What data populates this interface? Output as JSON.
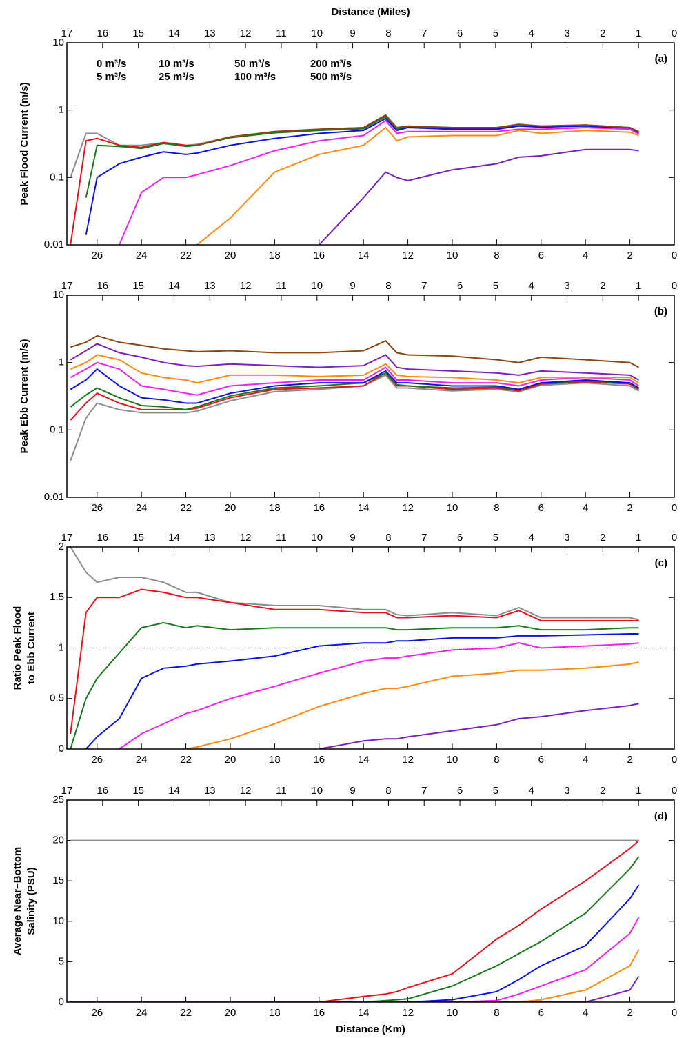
{
  "chart_data": [
    {
      "type": "line",
      "x2label": "Distance (Miles)",
      "panel": "(a)",
      "ylabel": [
        "Peak Flood Current (m/s)"
      ],
      "log": true,
      "xlim": [
        27.36,
        0
      ],
      "xticks": [
        26,
        24,
        22,
        20,
        18,
        16,
        14,
        12,
        10,
        8,
        6,
        4,
        2,
        0
      ],
      "x2lim": [
        17,
        0
      ],
      "x2ticks": [
        17,
        16,
        15,
        14,
        13,
        12,
        11,
        10,
        9,
        8,
        7,
        6,
        5,
        4,
        3,
        2,
        1,
        0
      ],
      "ylim": [
        0.01,
        10
      ],
      "yticks": [
        0.01,
        0.1,
        1,
        10
      ],
      "x": [
        27.2,
        26.5,
        26,
        25,
        24,
        23,
        22,
        21.5,
        20,
        18,
        16,
        14,
        13,
        12.5,
        12,
        10,
        8,
        7,
        6,
        4,
        2,
        1.6
      ],
      "series": [
        {
          "name": "0 m³/s",
          "color": "#8c8c8c",
          "values": [
            0.1,
            0.45,
            0.45,
            0.3,
            0.3,
            0.33,
            0.3,
            0.31,
            0.4,
            0.48,
            0.52,
            0.55,
            0.85,
            0.55,
            0.58,
            0.55,
            0.55,
            0.62,
            0.58,
            0.6,
            0.55,
            0.48
          ]
        },
        {
          "name": "5 m³/s",
          "color": "#e8101a",
          "values": [
            0.01,
            0.35,
            0.38,
            0.3,
            0.28,
            0.33,
            0.3,
            0.3,
            0.4,
            0.47,
            0.51,
            0.54,
            0.82,
            0.53,
            0.57,
            0.53,
            0.53,
            0.6,
            0.57,
            0.6,
            0.54,
            0.47
          ]
        },
        {
          "name": "10 m³/s",
          "color": "#1a7a1a",
          "values": [
            null,
            0.05,
            0.3,
            0.29,
            0.27,
            0.32,
            0.29,
            0.3,
            0.39,
            0.46,
            0.5,
            0.53,
            0.8,
            0.52,
            0.56,
            0.52,
            0.52,
            0.59,
            0.56,
            0.59,
            0.53,
            0.46
          ]
        },
        {
          "name": "25 m³/s",
          "color": "#0a14e0",
          "values": [
            null,
            0.014,
            0.1,
            0.16,
            0.2,
            0.24,
            0.22,
            0.23,
            0.3,
            0.38,
            0.45,
            0.5,
            0.75,
            0.5,
            0.55,
            0.52,
            0.52,
            0.58,
            0.56,
            0.58,
            0.53,
            0.46
          ]
        },
        {
          "name": "50 m³/s",
          "color": "#f020f0",
          "values": [
            null,
            null,
            null,
            0.01,
            0.06,
            0.1,
            0.1,
            0.11,
            0.15,
            0.25,
            0.35,
            0.42,
            0.7,
            0.45,
            0.48,
            0.48,
            0.48,
            0.52,
            0.52,
            0.55,
            0.52,
            0.44
          ]
        },
        {
          "name": "100 m³/s",
          "color": "#ff8a10",
          "values": [
            null,
            null,
            null,
            null,
            null,
            null,
            null,
            0.01,
            0.025,
            0.12,
            0.22,
            0.3,
            0.55,
            0.35,
            0.4,
            0.42,
            0.42,
            0.5,
            0.45,
            0.5,
            0.47,
            0.42
          ]
        },
        {
          "name": "200 m³/s",
          "color": "#7a1fc0",
          "values": [
            null,
            null,
            null,
            null,
            null,
            null,
            null,
            null,
            null,
            null,
            0.01,
            0.05,
            0.12,
            0.1,
            0.09,
            0.13,
            0.16,
            0.2,
            0.21,
            0.26,
            0.26,
            0.25
          ]
        },
        {
          "name": "500 m³/s",
          "color": "#8b4513",
          "values": [
            null,
            null,
            null,
            null,
            null,
            null,
            null,
            0.3,
            0.4,
            0.48,
            0.52,
            0.55,
            0.84,
            0.55,
            0.58,
            0.55,
            0.55,
            0.61,
            0.58,
            0.6,
            0.55,
            0.48
          ]
        }
      ]
    },
    {
      "type": "line",
      "panel": "(b)",
      "ylabel": [
        "Peak Ebb Current (m/s)"
      ],
      "log": true,
      "xlim": [
        27.36,
        0
      ],
      "xticks": [
        26,
        24,
        22,
        20,
        18,
        16,
        14,
        12,
        10,
        8,
        6,
        4,
        2,
        0
      ],
      "x2lim": [
        17,
        0
      ],
      "x2ticks": [
        17,
        16,
        15,
        14,
        13,
        12,
        11,
        10,
        9,
        8,
        7,
        6,
        5,
        4,
        3,
        2,
        1,
        0
      ],
      "ylim": [
        0.01,
        10
      ],
      "yticks": [
        0.01,
        0.1,
        1,
        10
      ],
      "x": [
        27.2,
        26.5,
        26,
        25,
        24,
        23,
        22,
        21.5,
        20,
        18,
        16,
        14,
        13,
        12.5,
        12,
        10,
        8,
        7,
        6,
        4,
        2,
        1.6
      ],
      "series": [
        {
          "name": "0 m³/s",
          "color": "#8c8c8c",
          "values": [
            0.035,
            0.15,
            0.25,
            0.2,
            0.18,
            0.18,
            0.18,
            0.19,
            0.27,
            0.37,
            0.4,
            0.45,
            0.65,
            0.42,
            0.42,
            0.38,
            0.4,
            0.37,
            0.46,
            0.5,
            0.45,
            0.38
          ]
        },
        {
          "name": "5 m³/s",
          "color": "#e8101a",
          "values": [
            0.14,
            0.25,
            0.35,
            0.25,
            0.2,
            0.2,
            0.2,
            0.21,
            0.3,
            0.4,
            0.42,
            0.45,
            0.7,
            0.45,
            0.45,
            0.4,
            0.42,
            0.38,
            0.48,
            0.52,
            0.48,
            0.4
          ]
        },
        {
          "name": "10 m³/s",
          "color": "#1a7a1a",
          "values": [
            0.22,
            0.33,
            0.42,
            0.3,
            0.23,
            0.22,
            0.2,
            0.22,
            0.32,
            0.42,
            0.45,
            0.5,
            0.7,
            0.47,
            0.45,
            0.42,
            0.43,
            0.4,
            0.5,
            0.53,
            0.5,
            0.41
          ]
        },
        {
          "name": "25 m³/s",
          "color": "#0a14e0",
          "values": [
            0.4,
            0.55,
            0.8,
            0.45,
            0.3,
            0.28,
            0.25,
            0.25,
            0.35,
            0.45,
            0.5,
            0.5,
            0.75,
            0.5,
            0.5,
            0.45,
            0.45,
            0.4,
            0.5,
            0.55,
            0.5,
            0.42
          ]
        },
        {
          "name": "50 m³/s",
          "color": "#f020f0",
          "values": [
            0.6,
            0.8,
            1.0,
            0.8,
            0.45,
            0.4,
            0.35,
            0.33,
            0.45,
            0.5,
            0.55,
            0.55,
            0.85,
            0.55,
            0.55,
            0.5,
            0.5,
            0.45,
            0.55,
            0.6,
            0.55,
            0.45
          ]
        },
        {
          "name": "100 m³/s",
          "color": "#ff8a10",
          "values": [
            0.8,
            1.0,
            1.3,
            1.1,
            0.7,
            0.6,
            0.55,
            0.5,
            0.65,
            0.65,
            0.62,
            0.65,
            0.95,
            0.65,
            0.62,
            0.6,
            0.55,
            0.5,
            0.6,
            0.6,
            0.6,
            0.5
          ]
        },
        {
          "name": "200 m³/s",
          "color": "#7a1fc0",
          "values": [
            1.1,
            1.5,
            1.9,
            1.4,
            1.2,
            1.0,
            0.9,
            0.88,
            0.95,
            0.9,
            0.85,
            0.9,
            1.3,
            0.85,
            0.8,
            0.75,
            0.7,
            0.65,
            0.75,
            0.7,
            0.65,
            0.55
          ]
        },
        {
          "name": "500 m³/s",
          "color": "#8b4513",
          "values": [
            1.7,
            2.0,
            2.5,
            2.0,
            1.8,
            1.6,
            1.5,
            1.45,
            1.5,
            1.4,
            1.4,
            1.5,
            2.1,
            1.4,
            1.3,
            1.25,
            1.1,
            1.0,
            1.2,
            1.1,
            1.0,
            0.85
          ]
        }
      ]
    },
    {
      "type": "line",
      "panel": "(c)",
      "ylabel": [
        "Ratio Peak Flood",
        "to Ebb Current"
      ],
      "log": false,
      "hline": 1,
      "xlim": [
        27.36,
        0
      ],
      "xticks": [
        26,
        24,
        22,
        20,
        18,
        16,
        14,
        12,
        10,
        8,
        6,
        4,
        2,
        0
      ],
      "x2lim": [
        17,
        0
      ],
      "x2ticks": [
        17,
        16,
        15,
        14,
        13,
        12,
        11,
        10,
        9,
        8,
        7,
        6,
        5,
        4,
        3,
        2,
        1,
        0
      ],
      "ylim": [
        0,
        2
      ],
      "yticks": [
        0,
        0.5,
        1,
        1.5,
        2
      ],
      "x": [
        27.2,
        26.5,
        26,
        25,
        24,
        23,
        22,
        21.5,
        20,
        18,
        16,
        14,
        13,
        12.5,
        12,
        10,
        8,
        7,
        6,
        4,
        2,
        1.6
      ],
      "series": [
        {
          "name": "0 m³/s",
          "color": "#8c8c8c",
          "values": [
            2.0,
            1.75,
            1.65,
            1.7,
            1.7,
            1.65,
            1.55,
            1.55,
            1.45,
            1.42,
            1.42,
            1.38,
            1.38,
            1.33,
            1.32,
            1.35,
            1.32,
            1.4,
            1.3,
            1.3,
            1.3,
            1.28
          ]
        },
        {
          "name": "5 m³/s",
          "color": "#e8101a",
          "values": [
            0.15,
            1.35,
            1.5,
            1.5,
            1.58,
            1.55,
            1.5,
            1.5,
            1.45,
            1.38,
            1.38,
            1.35,
            1.35,
            1.3,
            1.3,
            1.32,
            1.3,
            1.37,
            1.27,
            1.27,
            1.27,
            1.27
          ]
        },
        {
          "name": "10 m³/s",
          "color": "#1a7a1a",
          "values": [
            0,
            0.5,
            0.7,
            0.95,
            1.2,
            1.25,
            1.2,
            1.22,
            1.18,
            1.2,
            1.2,
            1.2,
            1.2,
            1.18,
            1.18,
            1.2,
            1.2,
            1.22,
            1.18,
            1.18,
            1.2,
            1.2
          ]
        },
        {
          "name": "25 m³/s",
          "color": "#0a14e0",
          "values": [
            null,
            0,
            0.12,
            0.3,
            0.7,
            0.8,
            0.82,
            0.84,
            0.87,
            0.92,
            1.02,
            1.05,
            1.05,
            1.07,
            1.07,
            1.1,
            1.1,
            1.12,
            1.12,
            1.13,
            1.14,
            1.14
          ]
        },
        {
          "name": "50 m³/s",
          "color": "#f020f0",
          "values": [
            null,
            null,
            null,
            0,
            0.15,
            0.25,
            0.35,
            0.38,
            0.5,
            0.62,
            0.75,
            0.87,
            0.9,
            0.9,
            0.92,
            0.98,
            1.0,
            1.05,
            1.0,
            1.02,
            1.04,
            1.05
          ]
        },
        {
          "name": "100 m³/s",
          "color": "#ff8a10",
          "values": [
            null,
            null,
            null,
            null,
            null,
            null,
            0,
            0.02,
            0.1,
            0.25,
            0.42,
            0.55,
            0.6,
            0.6,
            0.62,
            0.72,
            0.75,
            0.78,
            0.78,
            0.8,
            0.84,
            0.86
          ]
        },
        {
          "name": "200 m³/s",
          "color": "#7a1fc0",
          "values": [
            null,
            null,
            null,
            null,
            null,
            null,
            null,
            null,
            null,
            null,
            0,
            0.08,
            0.1,
            0.1,
            0.12,
            0.18,
            0.24,
            0.3,
            0.32,
            0.38,
            0.43,
            0.45
          ]
        }
      ]
    },
    {
      "type": "line",
      "panel": "(d)",
      "ylabel": [
        "Average Near−Bottom",
        "Salinity (PSU)"
      ],
      "xlabel": "Distance (Km)",
      "log": false,
      "xlim": [
        27.36,
        0
      ],
      "xticks": [
        26,
        24,
        22,
        20,
        18,
        16,
        14,
        12,
        10,
        8,
        6,
        4,
        2,
        0
      ],
      "x2lim": [
        17,
        0
      ],
      "x2ticks": [
        17,
        16,
        15,
        14,
        13,
        12,
        11,
        10,
        9,
        8,
        7,
        6,
        5,
        4,
        3,
        2,
        1,
        0
      ],
      "ylim": [
        0,
        25
      ],
      "yticks": [
        0,
        5,
        10,
        15,
        20,
        25
      ],
      "x": [
        27.2,
        26,
        24,
        22,
        20,
        18,
        16,
        14,
        13,
        12.5,
        12,
        10,
        8,
        7,
        6,
        4,
        2,
        1.6
      ],
      "series": [
        {
          "name": "0 m³/s",
          "color": "#8c8c8c",
          "values": [
            20,
            20,
            20,
            20,
            20,
            20,
            20,
            20,
            20,
            20,
            20,
            20,
            20,
            20,
            20,
            20,
            20,
            20
          ]
        },
        {
          "name": "5 m³/s",
          "color": "#e8101a",
          "values": [
            0,
            0,
            0,
            0,
            0,
            0,
            0,
            0.7,
            1.0,
            1.3,
            1.8,
            3.5,
            7.8,
            9.5,
            11.5,
            15,
            19,
            20
          ]
        },
        {
          "name": "10 m³/s",
          "color": "#1a7a1a",
          "values": [
            0,
            0,
            0,
            0,
            0,
            0,
            0,
            0,
            0.2,
            0.3,
            0.4,
            2,
            4.5,
            6,
            7.5,
            11,
            16.5,
            18
          ]
        },
        {
          "name": "25 m³/s",
          "color": "#0a14e0",
          "values": [
            0,
            0,
            0,
            0,
            0,
            0,
            0,
            0,
            0,
            0,
            0,
            0.3,
            1.3,
            2.8,
            4.5,
            7,
            12.8,
            14.5
          ]
        },
        {
          "name": "50 m³/s",
          "color": "#f020f0",
          "values": [
            0,
            0,
            0,
            0,
            0,
            0,
            0,
            0,
            0,
            0,
            0,
            0,
            0.2,
            1,
            2,
            4,
            8.5,
            10.5
          ]
        },
        {
          "name": "100 m³/s",
          "color": "#ff8a10",
          "values": [
            0,
            0,
            0,
            0,
            0,
            0,
            0,
            0,
            0,
            0,
            0,
            0,
            0,
            0,
            0.3,
            1.5,
            4.5,
            6.5
          ]
        },
        {
          "name": "200 m³/s",
          "color": "#7a1fc0",
          "values": [
            0,
            0,
            0,
            0,
            0,
            0,
            0,
            0,
            0,
            0,
            0,
            0,
            0,
            0,
            0,
            0,
            1.5,
            3.2
          ]
        }
      ]
    }
  ]
}
